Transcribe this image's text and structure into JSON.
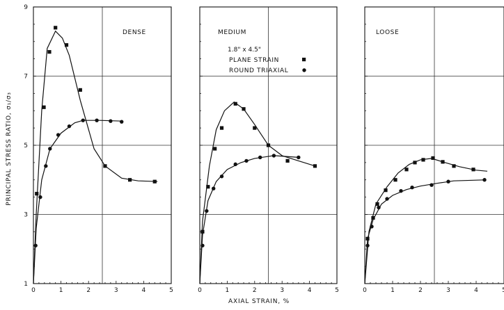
{
  "chart_data": {
    "type": "line",
    "ylabel": "PRINCIPAL STRESS RATIO, σ₁/σ₃",
    "xlabel": "AXIAL STRAIN, %",
    "x_ticks": [
      "0",
      "1",
      "2",
      "3",
      "4",
      "5"
    ],
    "y_ticks": [
      "1",
      "3",
      "5",
      "7",
      "9"
    ],
    "xlim": [
      0,
      5
    ],
    "ylim": [
      1,
      9
    ],
    "grid": true,
    "legend": {
      "header": "1.8\" x 4.5\"",
      "entries": [
        {
          "label": "PLANE STRAIN",
          "marker": "square"
        },
        {
          "label": "ROUND TRIAXIAL",
          "marker": "circle"
        }
      ],
      "panel": "MEDIUM"
    },
    "panels": [
      {
        "title": "DENSE",
        "series": [
          {
            "name": "PLANE STRAIN",
            "marker": "square",
            "curve": [
              [
                0,
                1.0
              ],
              [
                0.1,
                3.0
              ],
              [
                0.3,
                6.0
              ],
              [
                0.5,
                7.8
              ],
              [
                0.8,
                8.3
              ],
              [
                1.05,
                8.1
              ],
              [
                1.3,
                7.6
              ],
              [
                1.7,
                6.3
              ],
              [
                2.2,
                4.9
              ],
              [
                2.6,
                4.4
              ],
              [
                3.2,
                4.05
              ],
              [
                3.8,
                3.97
              ],
              [
                4.5,
                3.95
              ]
            ],
            "points": [
              [
                0.12,
                3.6
              ],
              [
                0.38,
                6.1
              ],
              [
                0.58,
                7.7
              ],
              [
                0.8,
                8.4
              ],
              [
                1.2,
                7.9
              ],
              [
                1.7,
                6.6
              ],
              [
                2.6,
                4.4
              ],
              [
                3.5,
                4.0
              ],
              [
                4.4,
                3.95
              ]
            ]
          },
          {
            "name": "ROUND TRIAXIAL",
            "marker": "circle",
            "curve": [
              [
                0,
                1.0
              ],
              [
                0.1,
                2.6
              ],
              [
                0.3,
                4.0
              ],
              [
                0.6,
                4.9
              ],
              [
                1.0,
                5.35
              ],
              [
                1.5,
                5.65
              ],
              [
                1.8,
                5.72
              ],
              [
                2.4,
                5.72
              ],
              [
                3.2,
                5.7
              ]
            ],
            "points": [
              [
                0.08,
                2.1
              ],
              [
                0.25,
                3.5
              ],
              [
                0.45,
                4.4
              ],
              [
                0.6,
                4.9
              ],
              [
                0.9,
                5.3
              ],
              [
                1.3,
                5.55
              ],
              [
                1.8,
                5.72
              ],
              [
                2.3,
                5.72
              ],
              [
                2.8,
                5.7
              ],
              [
                3.2,
                5.68
              ]
            ]
          }
        ]
      },
      {
        "title": "MEDIUM",
        "series": [
          {
            "name": "PLANE STRAIN",
            "marker": "square",
            "curve": [
              [
                0,
                1.0
              ],
              [
                0.1,
                2.8
              ],
              [
                0.35,
                4.4
              ],
              [
                0.6,
                5.45
              ],
              [
                0.9,
                6.0
              ],
              [
                1.25,
                6.25
              ],
              [
                1.6,
                6.05
              ],
              [
                2.0,
                5.6
              ],
              [
                2.5,
                5.0
              ],
              [
                3.0,
                4.7
              ],
              [
                3.6,
                4.55
              ],
              [
                4.2,
                4.4
              ]
            ],
            "points": [
              [
                0.1,
                2.5
              ],
              [
                0.3,
                3.8
              ],
              [
                0.55,
                4.9
              ],
              [
                0.8,
                5.5
              ],
              [
                1.3,
                6.2
              ],
              [
                1.6,
                6.05
              ],
              [
                2.0,
                5.5
              ],
              [
                2.5,
                5.0
              ],
              [
                3.2,
                4.55
              ],
              [
                4.2,
                4.4
              ]
            ]
          },
          {
            "name": "ROUND TRIAXIAL",
            "marker": "circle",
            "curve": [
              [
                0,
                1.0
              ],
              [
                0.1,
                2.4
              ],
              [
                0.3,
                3.4
              ],
              [
                0.6,
                3.95
              ],
              [
                1.0,
                4.3
              ],
              [
                1.5,
                4.5
              ],
              [
                2.0,
                4.62
              ],
              [
                2.7,
                4.7
              ],
              [
                3.6,
                4.65
              ]
            ],
            "points": [
              [
                0.1,
                2.1
              ],
              [
                0.25,
                3.1
              ],
              [
                0.5,
                3.75
              ],
              [
                0.8,
                4.1
              ],
              [
                1.3,
                4.45
              ],
              [
                1.7,
                4.55
              ],
              [
                2.2,
                4.65
              ],
              [
                2.7,
                4.7
              ],
              [
                3.6,
                4.65
              ]
            ]
          }
        ]
      },
      {
        "title": "LOOSE",
        "series": [
          {
            "name": "PLANE STRAIN",
            "marker": "square",
            "curve": [
              [
                0,
                1.0
              ],
              [
                0.15,
                2.5
              ],
              [
                0.4,
                3.3
              ],
              [
                0.8,
                3.8
              ],
              [
                1.2,
                4.2
              ],
              [
                1.6,
                4.45
              ],
              [
                2.0,
                4.58
              ],
              [
                2.4,
                4.62
              ],
              [
                2.8,
                4.52
              ],
              [
                3.4,
                4.38
              ],
              [
                4.0,
                4.28
              ],
              [
                4.4,
                4.25
              ]
            ],
            "points": [
              [
                0.1,
                2.3
              ],
              [
                0.3,
                2.9
              ],
              [
                0.45,
                3.3
              ],
              [
                0.75,
                3.7
              ],
              [
                1.1,
                4.0
              ],
              [
                1.5,
                4.3
              ],
              [
                1.8,
                4.5
              ],
              [
                2.1,
                4.58
              ],
              [
                2.45,
                4.63
              ],
              [
                2.8,
                4.52
              ],
              [
                3.2,
                4.4
              ],
              [
                3.9,
                4.3
              ]
            ]
          },
          {
            "name": "ROUND TRIAXIAL",
            "marker": "circle",
            "curve": [
              [
                0,
                1.0
              ],
              [
                0.1,
                2.3
              ],
              [
                0.3,
                2.85
              ],
              [
                0.6,
                3.3
              ],
              [
                1.0,
                3.55
              ],
              [
                1.5,
                3.72
              ],
              [
                2.0,
                3.82
              ],
              [
                2.6,
                3.9
              ],
              [
                3.2,
                3.97
              ],
              [
                4.3,
                4.0
              ]
            ],
            "points": [
              [
                0.1,
                2.1
              ],
              [
                0.25,
                2.65
              ],
              [
                0.5,
                3.2
              ],
              [
                0.8,
                3.45
              ],
              [
                1.3,
                3.68
              ],
              [
                1.7,
                3.78
              ],
              [
                2.4,
                3.85
              ],
              [
                3.0,
                3.95
              ],
              [
                4.3,
                4.0
              ]
            ]
          }
        ]
      }
    ]
  }
}
